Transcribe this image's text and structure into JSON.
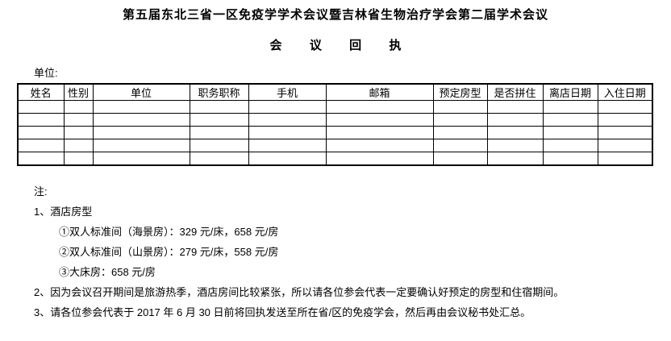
{
  "document": {
    "title": "第五届东北三省一区免疫学学术会议暨吉林省生物治疗学会第二届学术会议",
    "subtitle": "会  议  回  执",
    "unit_label": "单位:"
  },
  "table": {
    "headers": [
      "姓名",
      "性别",
      "单位",
      "职务职称",
      "手机",
      "邮箱",
      "预定房型",
      "是否拼住",
      "离店日期",
      "入住日期"
    ],
    "body_row_count": 5,
    "cell_values": ""
  },
  "notes": {
    "label": "注:",
    "items": [
      "1、酒店房型",
      "①双人标准间（海景房）：329 元/床，658 元/房",
      "②双人标准间（山景房）：279 元/床，558 元/房",
      "③大床房：658 元/房",
      "2、因为会议召开期间是旅游热季，酒店房间比较紧张，所以请各位参会代表一定要确认好预定的房型和住宿期间。",
      "3、请各位参会代表于 2017 年 6 月 30 日前将回执发送至所在省/区的免疫学会，然后再由会议秘书处汇总。"
    ]
  },
  "colors": {
    "text": "#000000",
    "background": "#ffffff",
    "table_border": "#000000"
  }
}
